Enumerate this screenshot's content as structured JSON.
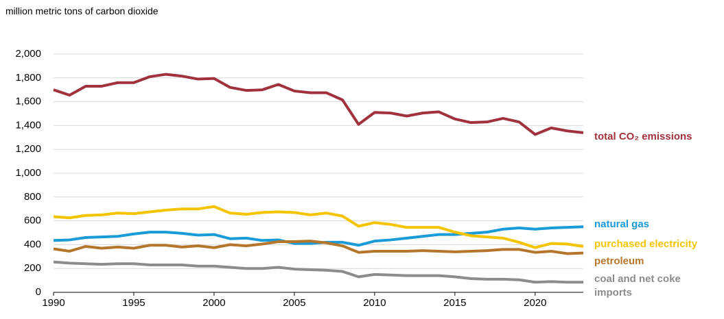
{
  "chart_data": {
    "type": "line",
    "y_label": "million metric tons of carbon dioxide",
    "x": [
      1990,
      1991,
      1992,
      1993,
      1994,
      1995,
      1996,
      1997,
      1998,
      1999,
      2000,
      2001,
      2002,
      2003,
      2004,
      2005,
      2006,
      2007,
      2008,
      2009,
      2010,
      2011,
      2012,
      2013,
      2014,
      2015,
      2016,
      2017,
      2018,
      2019,
      2020,
      2021,
      2022,
      2023
    ],
    "series": [
      {
        "name": "total CO₂ emissions",
        "color": "#a0323d",
        "values": [
          1700,
          1655,
          1730,
          1730,
          1760,
          1760,
          1810,
          1830,
          1815,
          1790,
          1795,
          1720,
          1695,
          1700,
          1745,
          1690,
          1675,
          1675,
          1615,
          1410,
          1510,
          1505,
          1480,
          1505,
          1515,
          1455,
          1425,
          1430,
          1460,
          1430,
          1325,
          1380,
          1355,
          1340
        ]
      },
      {
        "name": "natural gas",
        "color": "#1a9ad6",
        "values": [
          435,
          440,
          460,
          465,
          470,
          490,
          505,
          505,
          495,
          480,
          485,
          450,
          455,
          435,
          440,
          410,
          410,
          420,
          420,
          395,
          430,
          440,
          455,
          470,
          485,
          485,
          495,
          505,
          530,
          540,
          530,
          540,
          545,
          550
        ]
      },
      {
        "name": "purchased electricity",
        "color": "#f5c400",
        "values": [
          635,
          625,
          645,
          650,
          665,
          660,
          675,
          690,
          700,
          700,
          720,
          665,
          655,
          670,
          675,
          670,
          650,
          665,
          640,
          555,
          585,
          570,
          545,
          545,
          545,
          505,
          475,
          465,
          455,
          420,
          375,
          410,
          405,
          385
        ]
      },
      {
        "name": "petroleum",
        "color": "#b5762b",
        "values": [
          365,
          345,
          385,
          370,
          380,
          370,
          395,
          395,
          380,
          390,
          375,
          400,
          390,
          405,
          425,
          425,
          430,
          415,
          390,
          335,
          345,
          345,
          345,
          350,
          345,
          340,
          345,
          350,
          360,
          360,
          335,
          345,
          325,
          330
        ]
      },
      {
        "name": "coal and net coke imports",
        "color": "#8c8c8c",
        "values": [
          255,
          245,
          240,
          235,
          240,
          240,
          230,
          230,
          230,
          220,
          220,
          210,
          200,
          200,
          210,
          195,
          190,
          185,
          175,
          130,
          150,
          145,
          140,
          140,
          140,
          130,
          115,
          110,
          110,
          105,
          85,
          90,
          85,
          85
        ]
      }
    ],
    "xlim": [
      1990,
      2023
    ],
    "xticks": [
      1990,
      1995,
      2000,
      2005,
      2010,
      2015,
      2020
    ],
    "ylim": [
      0,
      2000
    ],
    "yticks": [
      0,
      200,
      400,
      600,
      800,
      {
        "value": 1000,
        "label": "1,000"
      },
      {
        "value": 1200,
        "label": "1,200"
      },
      {
        "value": 1400,
        "label": "1,400"
      },
      {
        "value": 1600,
        "label": "1,600"
      },
      {
        "value": 1800,
        "label": "1,800"
      },
      {
        "value": 2000,
        "label": "2,000"
      }
    ],
    "grid": true
  }
}
